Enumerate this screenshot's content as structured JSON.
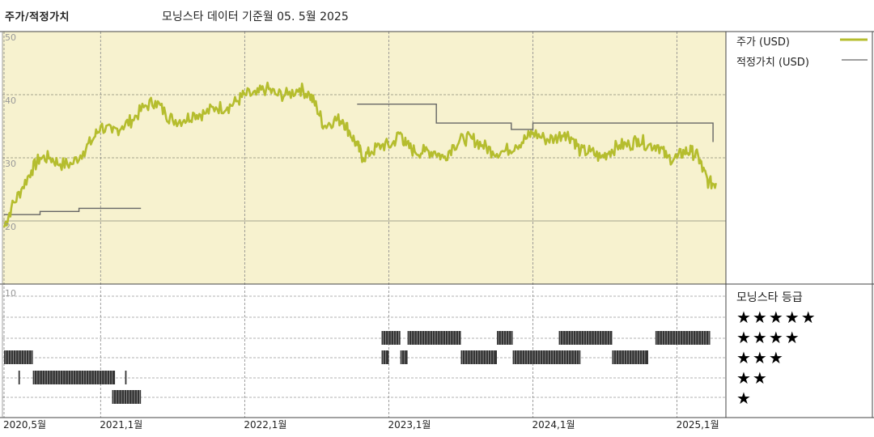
{
  "header": {
    "title": "주가/적정가치",
    "subtitle": "모닝스타 데이터 기준월 05. 5월 2025"
  },
  "legend": {
    "price_label": "주가 (USD)",
    "fair_value_label": "적정가치 (USD)"
  },
  "rating_panel": {
    "title": "모닝스타 등급",
    "rows": [
      "★★★★★",
      "★★★★",
      "★★★",
      "★★",
      "★"
    ]
  },
  "colors": {
    "plot_background": "#f7f2cf",
    "price_line": "#b5bd2e",
    "fair_value_line": "#666666",
    "rating_bar": "#333333",
    "grid": "#aaaaaa"
  },
  "chart_data": {
    "type": "line",
    "y_axis": {
      "ticks": [
        "50",
        "40",
        "30",
        "20"
      ],
      "range": [
        10,
        50
      ]
    },
    "lower_axis_label": "10",
    "x_tick_labels": [
      "2020,5월",
      "2021,1월",
      "2022,1월",
      "2023,1월",
      "2024,1월",
      "2025,1월"
    ],
    "x_ticks": [
      2020.33,
      2021.0,
      2022.0,
      2023.0,
      2024.0,
      2025.0
    ],
    "x_range": [
      2020.33,
      2025.3
    ],
    "series": [
      {
        "name": "주가 (USD)",
        "points": [
          [
            2020.33,
            19
          ],
          [
            2020.38,
            22
          ],
          [
            2020.45,
            25
          ],
          [
            2020.52,
            28
          ],
          [
            2020.58,
            30
          ],
          [
            2020.65,
            30
          ],
          [
            2020.72,
            29
          ],
          [
            2020.8,
            29
          ],
          [
            2020.88,
            31
          ],
          [
            2020.95,
            33
          ],
          [
            2021.0,
            35
          ],
          [
            2021.08,
            34
          ],
          [
            2021.15,
            35
          ],
          [
            2021.22,
            36
          ],
          [
            2021.3,
            38
          ],
          [
            2021.38,
            39
          ],
          [
            2021.45,
            37
          ],
          [
            2021.5,
            36
          ],
          [
            2021.58,
            36
          ],
          [
            2021.65,
            37
          ],
          [
            2021.72,
            37
          ],
          [
            2021.8,
            38
          ],
          [
            2021.88,
            38
          ],
          [
            2021.95,
            39
          ],
          [
            2022.0,
            40
          ],
          [
            2022.08,
            40
          ],
          [
            2022.15,
            41
          ],
          [
            2022.22,
            40
          ],
          [
            2022.3,
            40
          ],
          [
            2022.38,
            41
          ],
          [
            2022.45,
            40
          ],
          [
            2022.5,
            38
          ],
          [
            2022.55,
            35
          ],
          [
            2022.62,
            36
          ],
          [
            2022.68,
            36
          ],
          [
            2022.73,
            34
          ],
          [
            2022.78,
            32
          ],
          [
            2022.82,
            30
          ],
          [
            2022.88,
            31
          ],
          [
            2022.95,
            32
          ],
          [
            2023.02,
            32
          ],
          [
            2023.08,
            34
          ],
          [
            2023.12,
            32
          ],
          [
            2023.18,
            31
          ],
          [
            2023.25,
            31
          ],
          [
            2023.32,
            31
          ],
          [
            2023.38,
            30
          ],
          [
            2023.45,
            32
          ],
          [
            2023.52,
            33
          ],
          [
            2023.58,
            33
          ],
          [
            2023.65,
            32
          ],
          [
            2023.72,
            31
          ],
          [
            2023.8,
            31
          ],
          [
            2023.88,
            32
          ],
          [
            2023.95,
            33
          ],
          [
            2024.0,
            34
          ],
          [
            2024.08,
            33
          ],
          [
            2024.15,
            33
          ],
          [
            2024.22,
            34
          ],
          [
            2024.28,
            33
          ],
          [
            2024.33,
            31
          ],
          [
            2024.4,
            31
          ],
          [
            2024.47,
            30
          ],
          [
            2024.53,
            31
          ],
          [
            2024.6,
            32
          ],
          [
            2024.67,
            32
          ],
          [
            2024.73,
            33
          ],
          [
            2024.8,
            32
          ],
          [
            2024.87,
            32
          ],
          [
            2024.93,
            30
          ],
          [
            2025.0,
            30
          ],
          [
            2025.05,
            31
          ],
          [
            2025.1,
            31
          ],
          [
            2025.15,
            30
          ],
          [
            2025.18,
            28
          ],
          [
            2025.22,
            26
          ],
          [
            2025.27,
            26
          ]
        ]
      },
      {
        "name": "적정가치 (USD)",
        "segments": [
          [
            [
              2020.33,
              21
            ],
            [
              2020.58,
              21
            ],
            [
              2020.58,
              21.5
            ],
            [
              2020.85,
              21.5
            ],
            [
              2020.85,
              22
            ],
            [
              2021.28,
              22
            ]
          ],
          [
            [
              2022.78,
              38.5
            ],
            [
              2023.33,
              38.5
            ],
            [
              2023.33,
              35.5
            ],
            [
              2023.85,
              35.5
            ],
            [
              2023.85,
              34.5
            ],
            [
              2024.0,
              34.5
            ],
            [
              2024.0,
              35.5
            ],
            [
              2025.25,
              35.5
            ],
            [
              2025.25,
              32.5
            ]
          ]
        ]
      }
    ],
    "rating_history": [
      {
        "stars": 4,
        "spans": [
          [
            2022.95,
            2023.08
          ],
          [
            2023.13,
            2023.5
          ],
          [
            2023.75,
            2023.86
          ],
          [
            2024.18,
            2024.55
          ],
          [
            2024.85,
            2025.23
          ]
        ]
      },
      {
        "stars": 3,
        "spans": [
          [
            2020.33,
            2020.53
          ],
          [
            2022.95,
            2023.0
          ],
          [
            2023.08,
            2023.13
          ],
          [
            2023.5,
            2023.75
          ],
          [
            2023.86,
            2024.33
          ],
          [
            2024.55,
            2024.8
          ]
        ]
      },
      {
        "stars": 2,
        "spans": [
          [
            2020.43,
            2020.44
          ],
          [
            2020.53,
            2021.1
          ],
          [
            2021.17,
            2021.18
          ]
        ]
      },
      {
        "stars": 1,
        "spans": [
          [
            2021.08,
            2021.28
          ]
        ]
      }
    ]
  }
}
